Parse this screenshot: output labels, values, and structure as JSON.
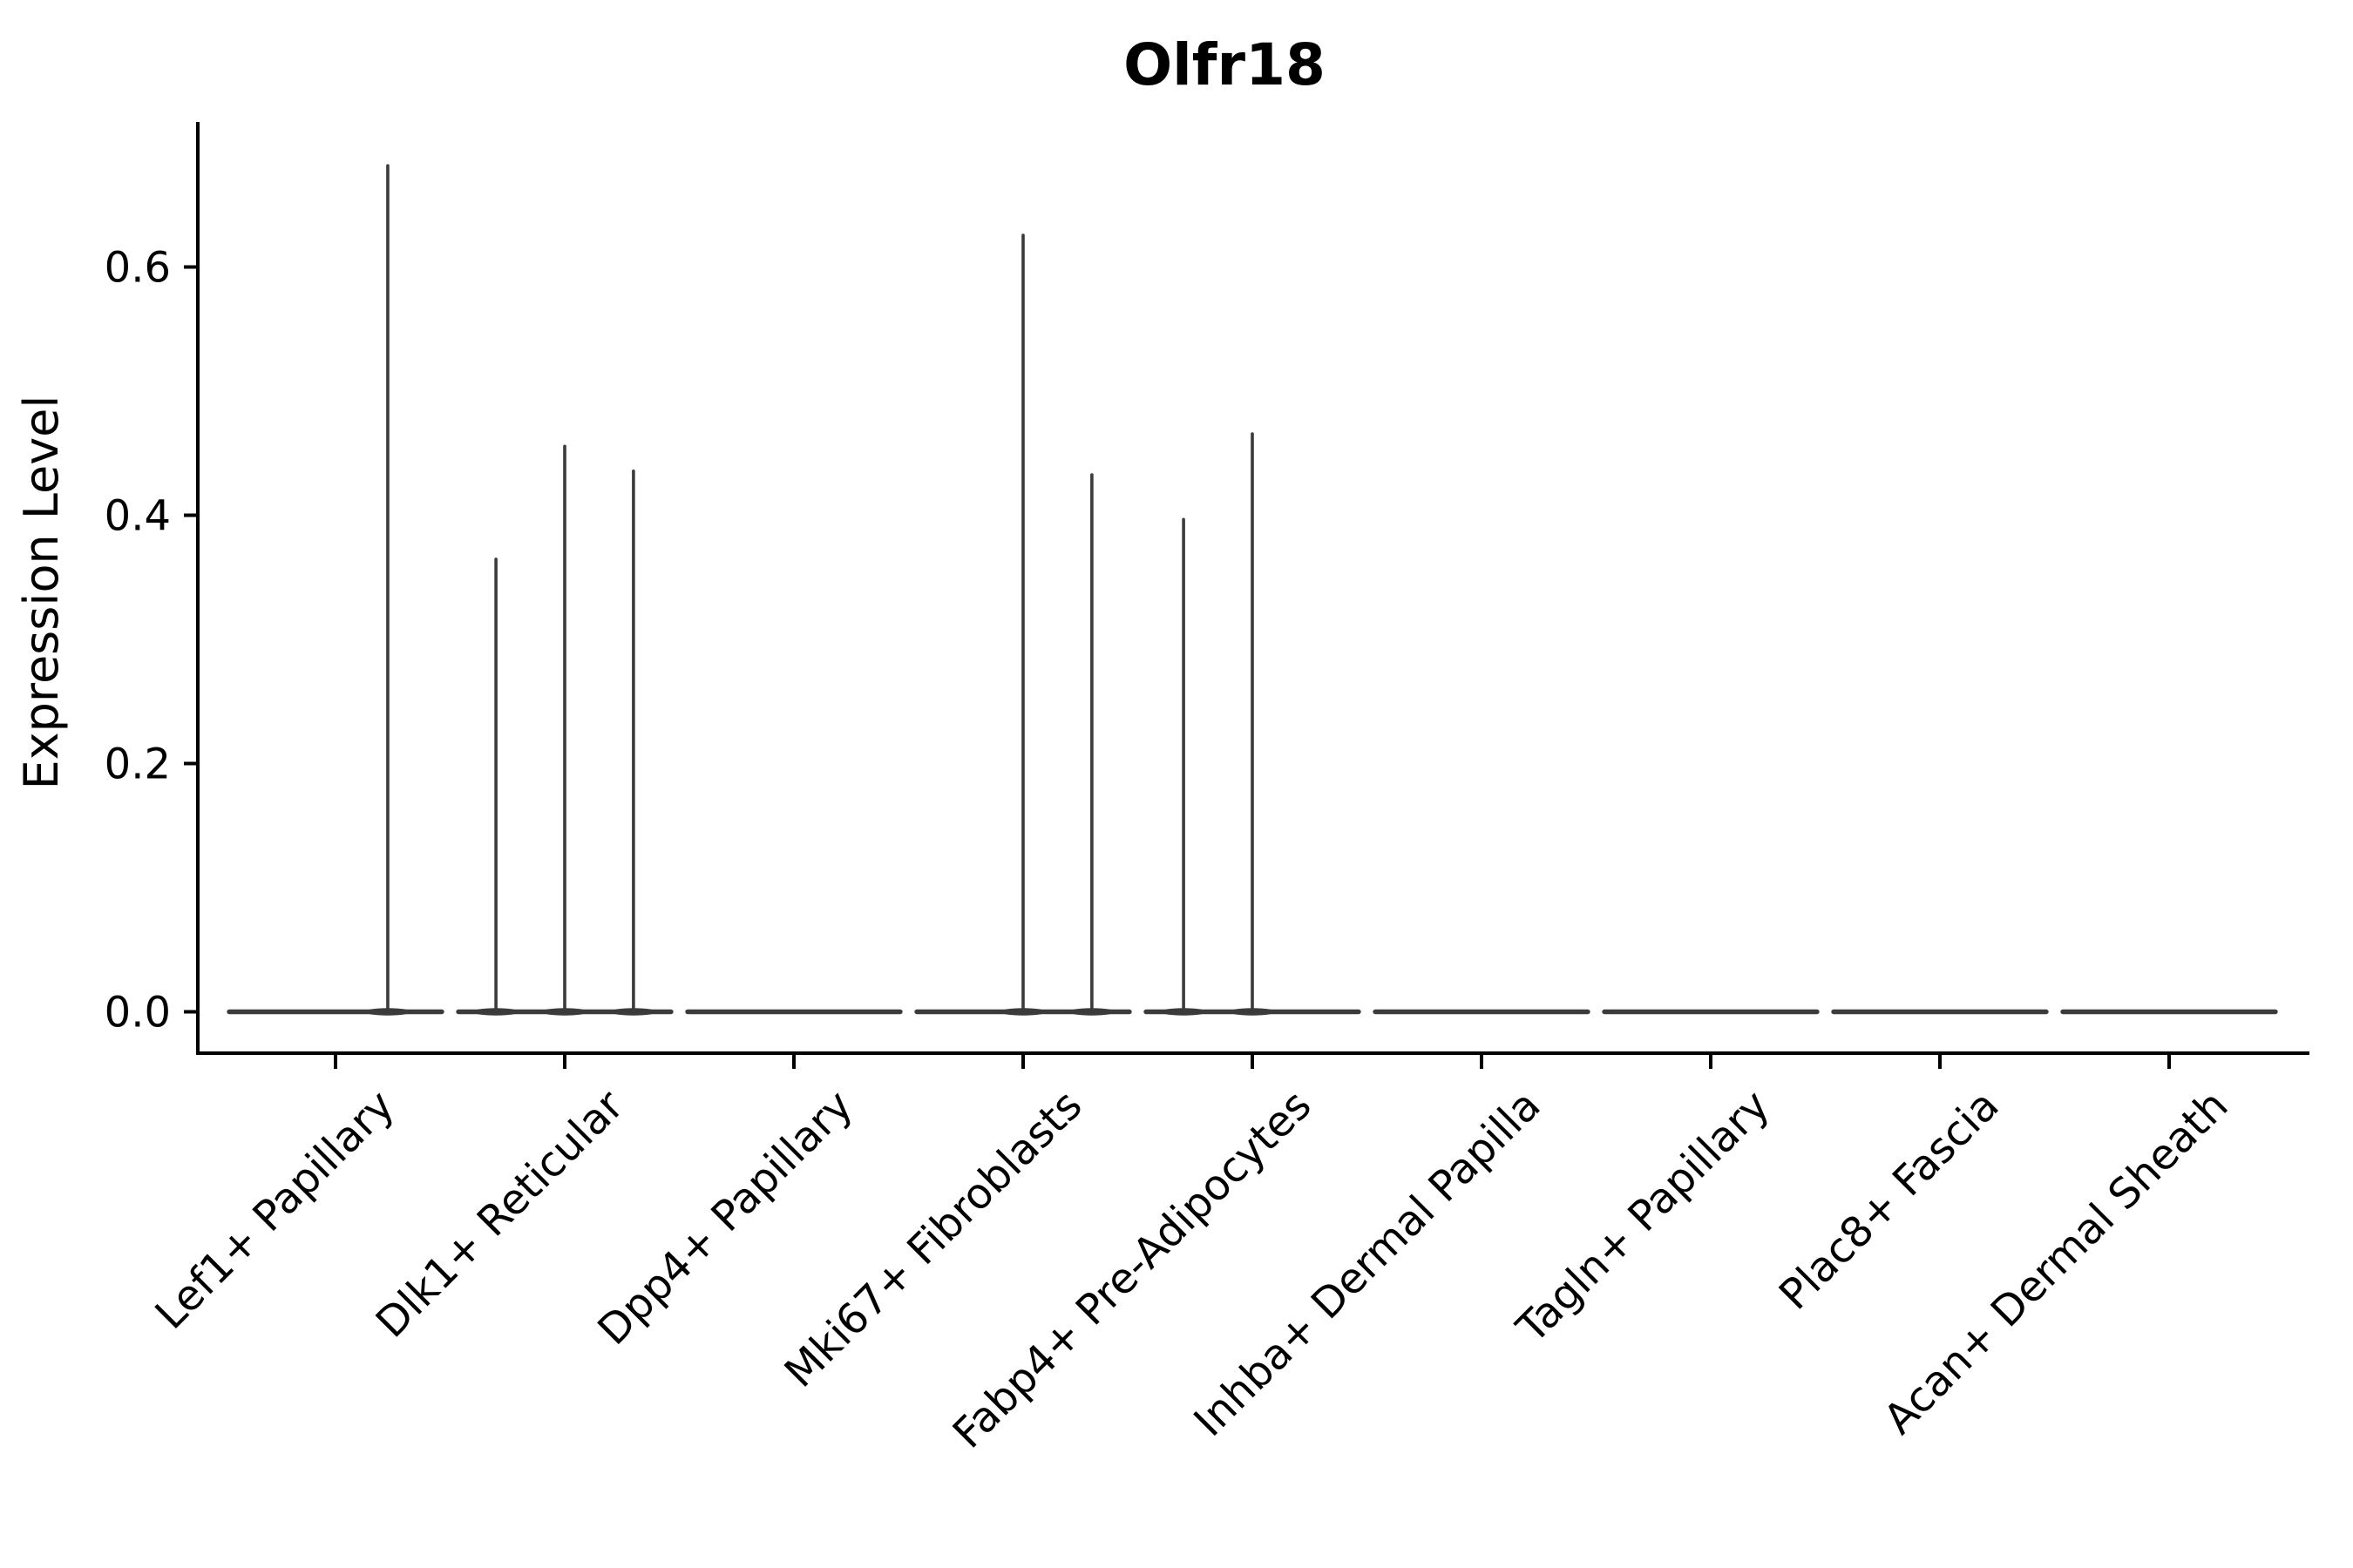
{
  "figure": {
    "title": "Olfr18",
    "y_axis_label": "Expression Level"
  },
  "chart_data": {
    "type": "violin",
    "title": "Olfr18",
    "xlabel": "",
    "ylabel": "Expression Level",
    "categories": [
      "Lef1+ Papillary",
      "Dlk1+ Reticular",
      "Dpp4+ Papillary",
      "Mki67+ Fibroblasts",
      "Fabp4+ Pre-Adipocytes",
      "Inhba+ Dermal Papilla",
      "Tagln+ Papillary",
      "Plac8+ Fascia",
      "Acan+ Dermal Sheath"
    ],
    "y_ticks": [
      0.0,
      0.2,
      0.4,
      0.6
    ],
    "y_tick_labels": [
      "0.0",
      "0.2",
      "0.4",
      "0.6"
    ],
    "ylim": [
      -0.033,
      0.717
    ],
    "grid": false,
    "legend": false,
    "x_tick_rotation_deg": 45,
    "violin_color": "#3b3b3b",
    "axis_color": "#000000",
    "description": "All categories have a flat violin at expression 0; thin spikes mark rare expressing cells",
    "series": [
      {
        "category": "Lef1+ Papillary",
        "baseline_value": 0.0,
        "spikes": [
          {
            "offset": 0.228,
            "value": 0.683
          }
        ]
      },
      {
        "category": "Dlk1+ Reticular",
        "baseline_value": 0.0,
        "spikes": [
          {
            "offset": -0.3,
            "value": 0.366
          },
          {
            "offset": 0.0,
            "value": 0.457
          },
          {
            "offset": 0.3,
            "value": 0.437
          }
        ]
      },
      {
        "category": "Dpp4+ Papillary",
        "baseline_value": 0.0,
        "spikes": []
      },
      {
        "category": "Mki67+ Fibroblasts",
        "baseline_value": 0.0,
        "spikes": [
          {
            "offset": 0.0,
            "value": 0.627
          },
          {
            "offset": 0.3,
            "value": 0.434
          }
        ]
      },
      {
        "category": "Fabp4+ Pre-Adipocytes",
        "baseline_value": 0.0,
        "spikes": [
          {
            "offset": -0.3,
            "value": 0.398
          },
          {
            "offset": 0.0,
            "value": 0.467
          }
        ]
      },
      {
        "category": "Inhba+ Dermal Papilla",
        "baseline_value": 0.0,
        "spikes": []
      },
      {
        "category": "Tagln+ Papillary",
        "baseline_value": 0.0,
        "spikes": []
      },
      {
        "category": "Plac8+ Fascia",
        "baseline_value": 0.0,
        "spikes": []
      },
      {
        "category": "Acan+ Dermal Sheath",
        "baseline_value": 0.0,
        "spikes": []
      }
    ]
  }
}
